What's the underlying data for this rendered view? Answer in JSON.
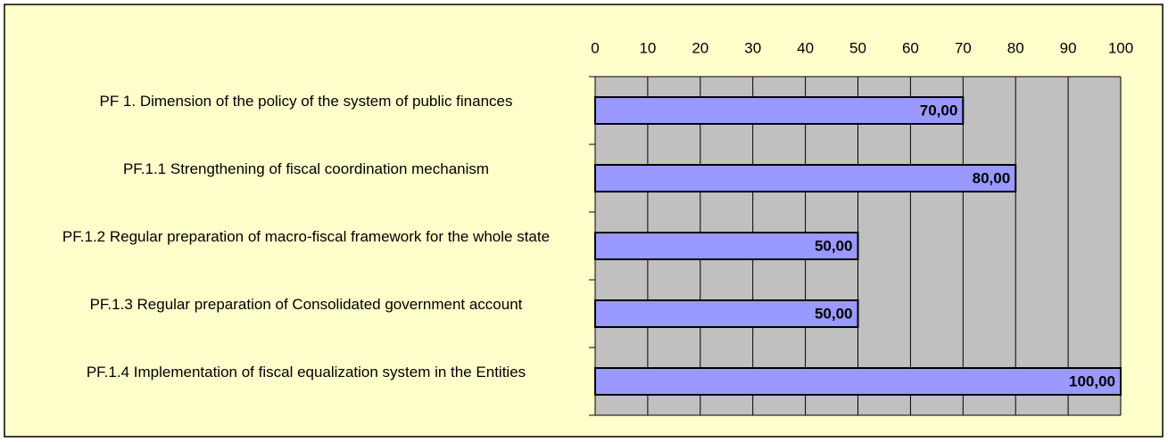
{
  "chart_data": {
    "type": "hbar",
    "categories": [
      "PF 1. Dimension of the policy of the system of public finances",
      "PF.1.1 Strengthening of fiscal coordination mechanism",
      "PF.1.2 Regular preparation of macro-fiscal framework for the whole state",
      "PF.1.3 Regular preparation of Consolidated government account",
      "PF.1.4 Implementation of fiscal equalization system in the Entities"
    ],
    "values": [
      70,
      80,
      50,
      50,
      100
    ],
    "value_labels": [
      "70,00",
      "80,00",
      "50,00",
      "50,00",
      "100,00"
    ],
    "color": "#9999ff",
    "xlim": [
      0,
      100
    ],
    "xticks": [
      0,
      10,
      20,
      30,
      40,
      50,
      60,
      70,
      80,
      90,
      100
    ],
    "grid": true
  }
}
